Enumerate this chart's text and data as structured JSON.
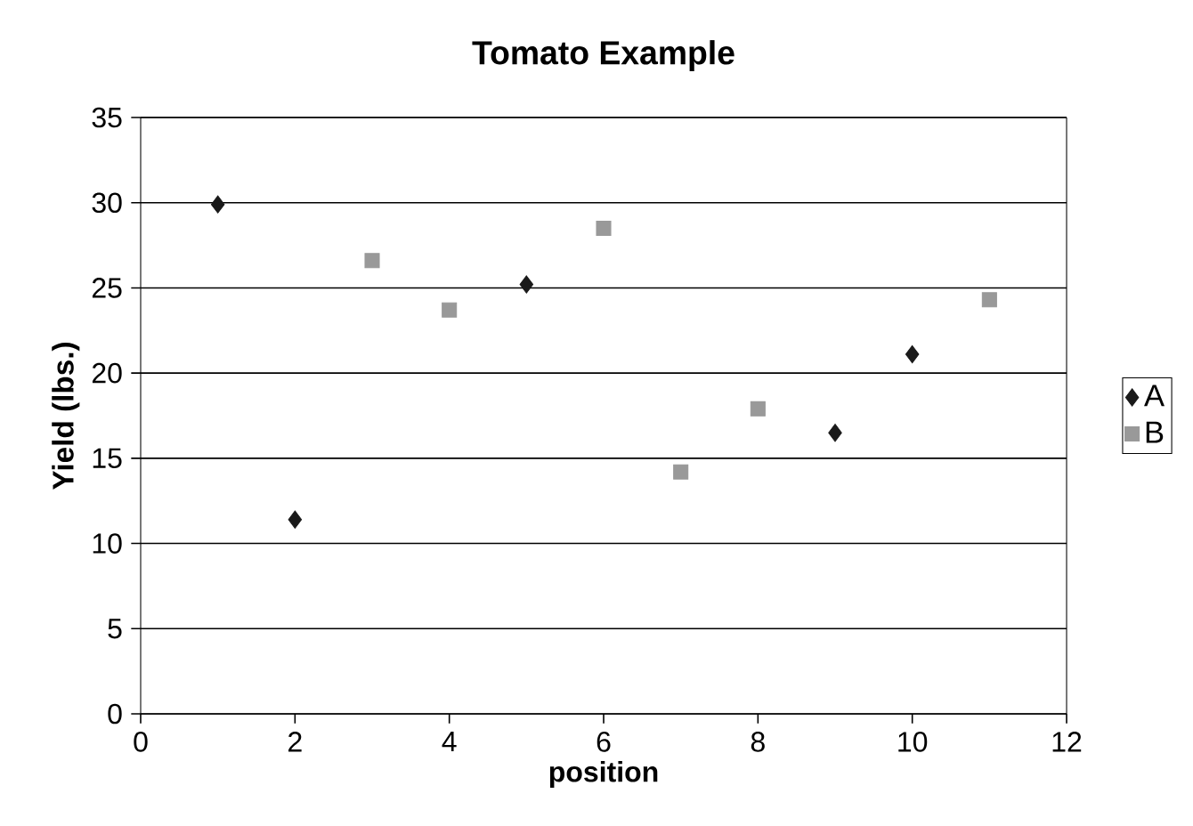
{
  "chart_data": {
    "type": "scatter",
    "title": "Tomato Example",
    "xlabel": "position",
    "ylabel": "Yield (lbs.)",
    "xlim": [
      0,
      12
    ],
    "xticks": [
      0,
      2,
      4,
      6,
      8,
      10,
      12
    ],
    "ylim": [
      0,
      35
    ],
    "yticks": [
      0,
      5,
      10,
      15,
      20,
      25,
      30,
      35
    ],
    "grid": "y",
    "legend": "right",
    "series": [
      {
        "name": "A",
        "color": "#1a1a1a",
        "marker": "diamond",
        "x": [
          1,
          2,
          5,
          9,
          10
        ],
        "values": [
          29.9,
          11.4,
          25.2,
          16.5,
          21.1
        ]
      },
      {
        "name": "B",
        "color": "#999999",
        "marker": "square",
        "x": [
          3,
          4,
          6,
          7,
          8,
          11
        ],
        "values": [
          26.6,
          23.7,
          28.5,
          14.2,
          17.9,
          24.3
        ]
      }
    ]
  }
}
